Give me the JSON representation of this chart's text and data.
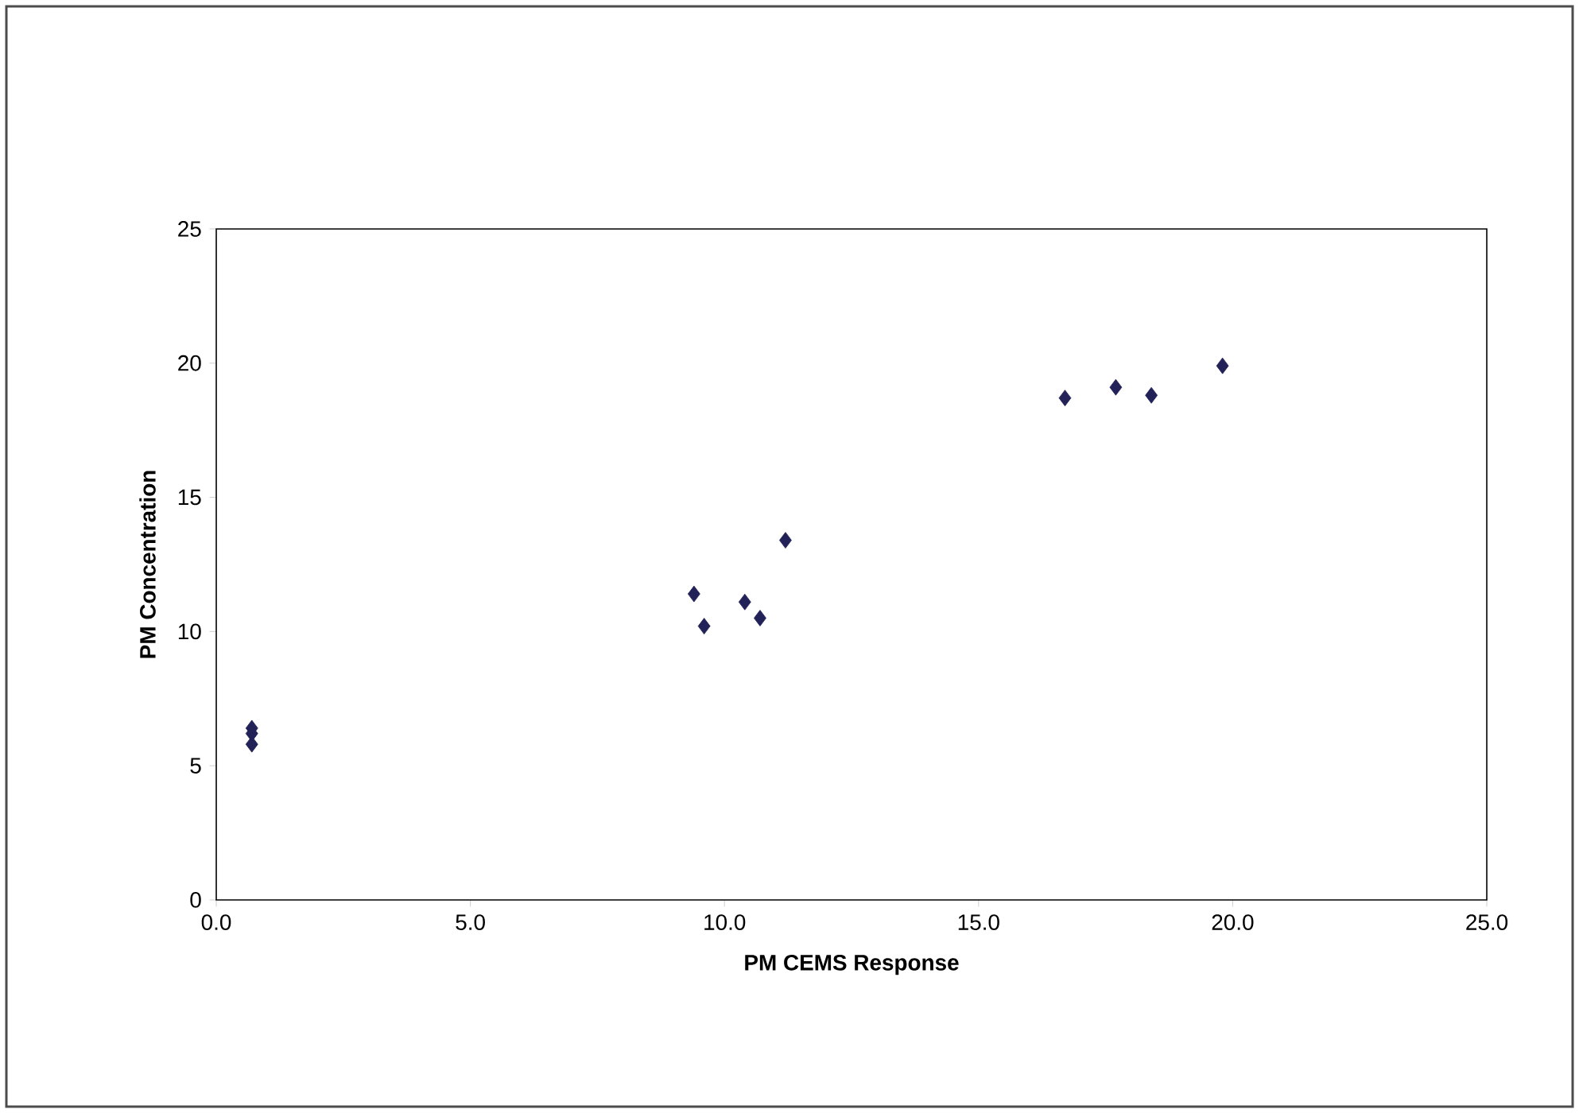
{
  "chart_data": {
    "type": "scatter",
    "xlabel": "PM CEMS Response",
    "ylabel": "PM Concentration",
    "x": [
      0.7,
      0.7,
      0.7,
      9.4,
      9.6,
      10.4,
      10.7,
      11.2,
      16.7,
      17.7,
      18.4,
      19.8
    ],
    "values": [
      6.4,
      6.2,
      5.8,
      11.4,
      10.2,
      11.1,
      10.5,
      13.4,
      18.7,
      19.1,
      18.8,
      19.9
    ],
    "color": "#222258",
    "marker": "diamond",
    "xlim": [
      0,
      25
    ],
    "ylim": [
      0,
      25
    ],
    "xticks": [
      {
        "value": 0,
        "label": "0.0"
      },
      {
        "value": 5,
        "label": "5.0"
      },
      {
        "value": 10,
        "label": "10.0"
      },
      {
        "value": 15,
        "label": "15.0"
      },
      {
        "value": 20,
        "label": "20.0"
      },
      {
        "value": 25,
        "label": "25.0"
      }
    ],
    "yticks": [
      0,
      5,
      10,
      15,
      20,
      25
    ],
    "grid": false
  }
}
